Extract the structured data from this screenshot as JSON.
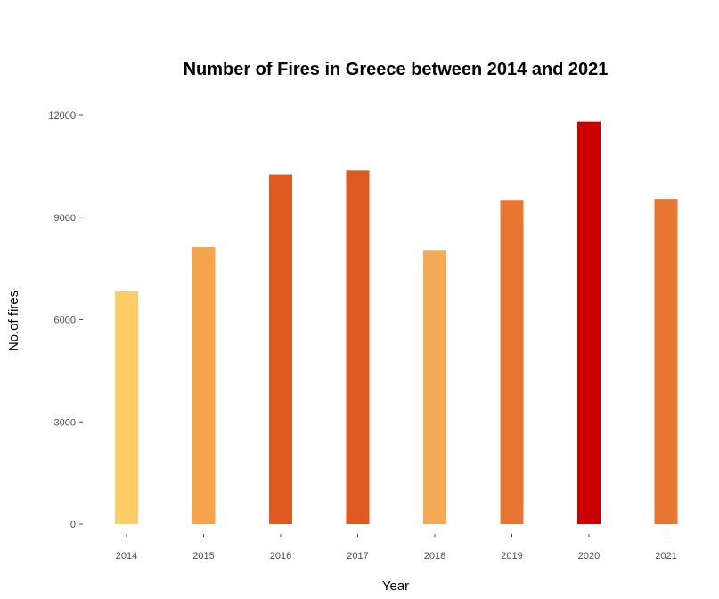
{
  "chart_data": {
    "type": "bar",
    "title": "Number of Fires in Greece between 2014 and 2021",
    "xlabel": "Year",
    "ylabel": "No.of fires",
    "categories": [
      "2014",
      "2015",
      "2016",
      "2017",
      "2018",
      "2019",
      "2020",
      "2021"
    ],
    "values": [
      6830,
      8130,
      10260,
      10370,
      8020,
      9510,
      11800,
      9540
    ],
    "colors": [
      "#fecc66",
      "#f5a44b",
      "#df5a22",
      "#df5a22",
      "#f5aa55",
      "#e87633",
      "#cc0000",
      "#e87633"
    ],
    "ylim": [
      0,
      12000
    ],
    "yticks": [
      0,
      3000,
      6000,
      9000,
      12000
    ],
    "grid": false,
    "legend": "none"
  }
}
